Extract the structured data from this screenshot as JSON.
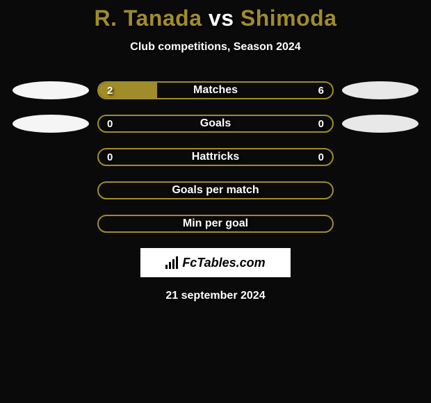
{
  "title_player1": "R. Tanada",
  "title_vs": " vs ",
  "title_player2": "Shimoda",
  "subtitle": "Club competitions, Season 2024",
  "colors": {
    "accent": "#a08c29",
    "ellipse1": "#f5f5f5",
    "ellipse2": "#e8e8e8",
    "background": "#0a0a0a",
    "text": "#ffffff"
  },
  "bars": [
    {
      "label": "Matches",
      "left_value": "2",
      "right_value": "6",
      "left_fill_pct": 25,
      "show_left_ellipse": true,
      "show_right_ellipse": true,
      "show_values": true
    },
    {
      "label": "Goals",
      "left_value": "0",
      "right_value": "0",
      "left_fill_pct": 0,
      "show_left_ellipse": true,
      "show_right_ellipse": true,
      "show_values": true
    },
    {
      "label": "Hattricks",
      "left_value": "0",
      "right_value": "0",
      "left_fill_pct": 0,
      "show_left_ellipse": false,
      "show_right_ellipse": false,
      "show_values": true
    },
    {
      "label": "Goals per match",
      "left_value": "",
      "right_value": "",
      "left_fill_pct": 0,
      "show_left_ellipse": false,
      "show_right_ellipse": false,
      "show_values": false
    },
    {
      "label": "Min per goal",
      "left_value": "",
      "right_value": "",
      "left_fill_pct": 0,
      "show_left_ellipse": false,
      "show_right_ellipse": false,
      "show_values": false
    }
  ],
  "attribution": "FcTables.com",
  "date": "21 september 2024"
}
